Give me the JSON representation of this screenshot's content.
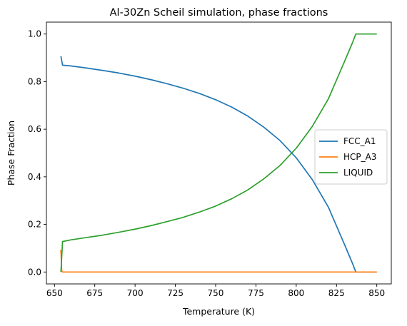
{
  "chart_data": {
    "type": "line",
    "title": "Al-30Zn Scheil simulation, phase fractions",
    "xlabel": "Temperature (K)",
    "ylabel": "Phase Fraction",
    "xlim": [
      645,
      859
    ],
    "ylim": [
      -0.05,
      1.05
    ],
    "xticks": [
      650,
      675,
      700,
      725,
      750,
      775,
      800,
      825,
      850
    ],
    "yticks": [
      0.0,
      0.2,
      0.4,
      0.6,
      0.8,
      1.0
    ],
    "xtick_labels": [
      "650",
      "675",
      "700",
      "725",
      "750",
      "775",
      "800",
      "825",
      "850"
    ],
    "ytick_labels": [
      "0.0",
      "0.2",
      "0.4",
      "0.6",
      "0.8",
      "1.0"
    ],
    "grid": false,
    "legend_position": "center-right",
    "series": [
      {
        "name": "FCC_A1",
        "color": "#1f77b4",
        "x": [
          654,
          655,
          660,
          670,
          680,
          690,
          700,
          710,
          720,
          730,
          740,
          750,
          760,
          770,
          780,
          790,
          800,
          810,
          820,
          830,
          835,
          837,
          840,
          850
        ],
        "y": [
          0.907,
          0.869,
          0.866,
          0.857,
          0.847,
          0.836,
          0.823,
          0.808,
          0.791,
          0.772,
          0.75,
          0.724,
          0.693,
          0.655,
          0.608,
          0.552,
          0.48,
          0.388,
          0.272,
          0.115,
          0.035,
          0.0,
          0.0,
          0.0
        ]
      },
      {
        "name": "HCP_A3",
        "color": "#ff7f0e",
        "x": [
          653.5,
          654,
          654.5,
          655,
          660,
          700,
          750,
          800,
          850
        ],
        "y": [
          0.09,
          0.09,
          0.005,
          0.0,
          0.0,
          0.0,
          0.0,
          0.0,
          0.0
        ]
      },
      {
        "name": "LIQUID",
        "color": "#2ca02c",
        "x": [
          654,
          655,
          660,
          670,
          680,
          690,
          700,
          710,
          720,
          730,
          740,
          750,
          760,
          770,
          780,
          790,
          800,
          810,
          820,
          830,
          835,
          837,
          840,
          850
        ],
        "y": [
          0.0,
          0.128,
          0.135,
          0.145,
          0.155,
          0.167,
          0.18,
          0.195,
          0.212,
          0.23,
          0.252,
          0.277,
          0.308,
          0.345,
          0.392,
          0.448,
          0.52,
          0.612,
          0.728,
          0.885,
          0.965,
          1.0,
          1.0,
          1.0
        ]
      }
    ]
  }
}
